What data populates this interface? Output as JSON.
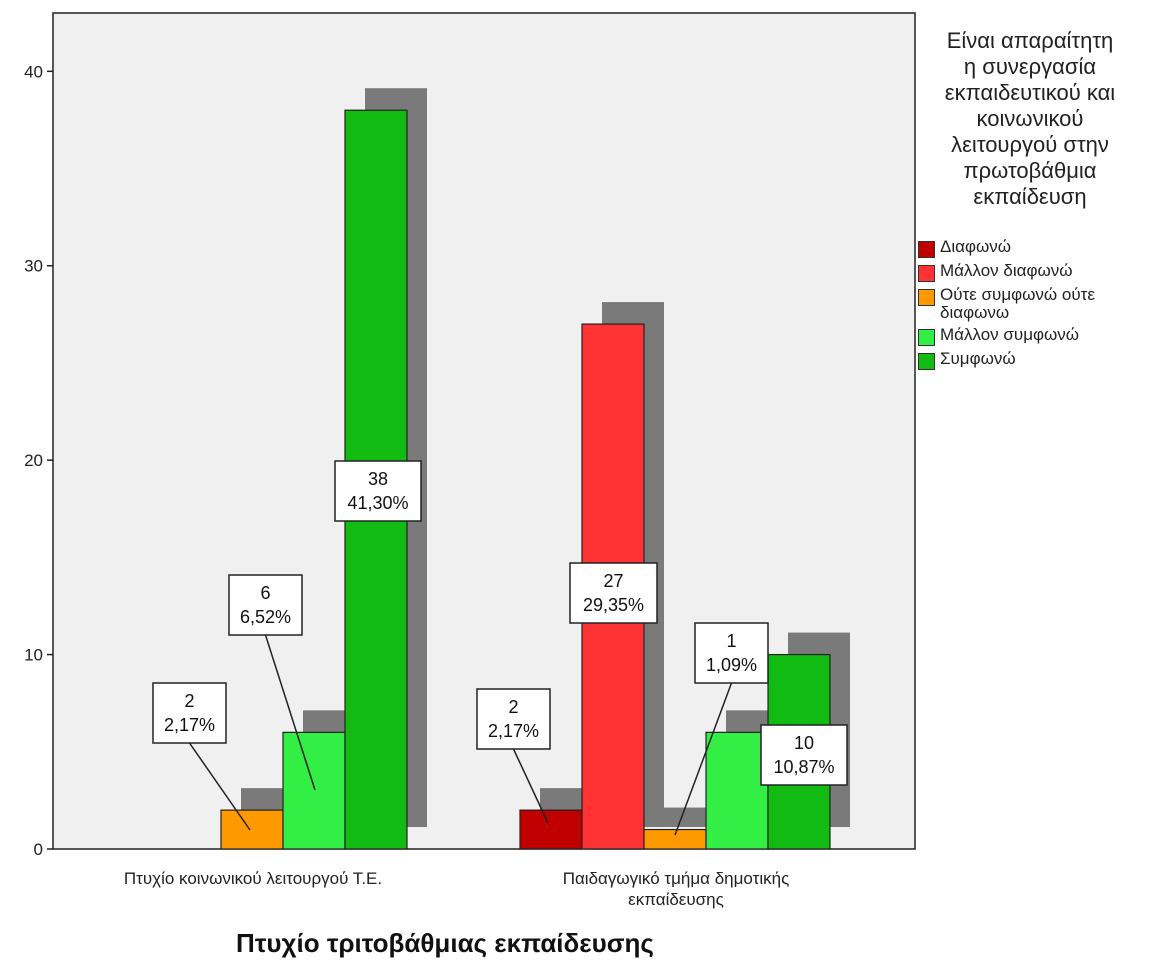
{
  "chart_data": {
    "type": "bar",
    "xlabel": "Πτυχίο τριτοβάθμιας εκπαίδευσης",
    "ylabel": "",
    "ylim": [
      0,
      43
    ],
    "yticks": [
      0,
      10,
      20,
      30,
      40
    ],
    "grid": false,
    "legend_title": "Είναι απαραίτητη\nη συνεργασία\nεκπαιδευτικού και\nκοινωνικού\nλειτουργού στην\nπρωτοβάθμια\nεκπαίδευση",
    "legend_position": "right",
    "categories": [
      "Πτυχίο κοινωνικού λειτουργού Τ.Ε.",
      "Παιδαγωγικό τμήμα δημοτικής εκπαίδευσης"
    ],
    "series": [
      {
        "name": "Διαφωνώ",
        "color": "#c00000",
        "values": [
          0,
          2
        ],
        "labels": [
          null,
          {
            "count": "2",
            "pct": "2,17%"
          }
        ]
      },
      {
        "name": "Μάλλον διαφωνώ",
        "color": "#ff3333",
        "values": [
          0,
          27
        ],
        "labels": [
          null,
          {
            "count": "27",
            "pct": "29,35%"
          }
        ]
      },
      {
        "name": "Ούτε συμφωνώ ούτε διαφωνω",
        "color": "#ff9900",
        "values": [
          2,
          1
        ],
        "labels": [
          {
            "count": "2",
            "pct": "2,17%"
          },
          {
            "count": "1",
            "pct": "1,09%"
          }
        ]
      },
      {
        "name": "Μάλλον συμφωνώ",
        "color": "#33ee44",
        "values": [
          6,
          6
        ],
        "labels": [
          {
            "count": "6",
            "pct": "6,52%"
          },
          null
        ]
      },
      {
        "name": "Συμφωνώ",
        "color": "#11bb11",
        "values": [
          38,
          10
        ],
        "labels": [
          {
            "count": "38",
            "pct": "41,30%"
          },
          {
            "count": "10",
            "pct": "10,87%"
          }
        ]
      }
    ]
  }
}
